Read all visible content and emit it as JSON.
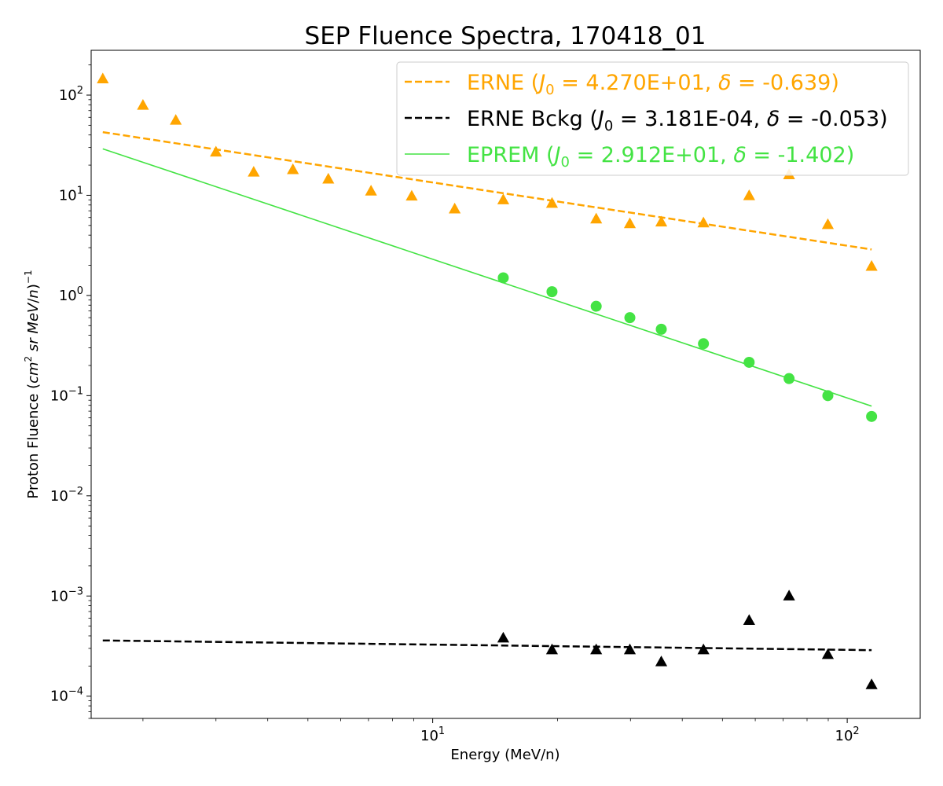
{
  "chart_data": {
    "type": "scatter",
    "title": "SEP Fluence Spectra, 170418_01",
    "xlabel": "Energy (MeV/n)",
    "ylabel": "Proton Fluence (cm² sr MeV/n)⁻¹",
    "xscale": "log",
    "yscale": "log",
    "xlim": [
      1.5,
      150
    ],
    "ylim": [
      6e-05,
      280
    ],
    "x_ticks": [
      {
        "value": 10,
        "mantissa": "10",
        "exp": "1"
      },
      {
        "value": 100,
        "mantissa": "10",
        "exp": "2"
      }
    ],
    "y_ticks": [
      {
        "value": 0.0001,
        "mantissa": "10",
        "exp": "−4"
      },
      {
        "value": 0.001,
        "mantissa": "10",
        "exp": "−3"
      },
      {
        "value": 0.01,
        "mantissa": "10",
        "exp": "−2"
      },
      {
        "value": 0.1,
        "mantissa": "10",
        "exp": "−1"
      },
      {
        "value": 1,
        "mantissa": "10",
        "exp": "0"
      },
      {
        "value": 10,
        "mantissa": "10",
        "exp": "1"
      },
      {
        "value": 100,
        "mantissa": "10",
        "exp": "2"
      }
    ],
    "legend_position": "top-right",
    "grid": false,
    "series": [
      {
        "name": "ERNE (J₀ = 4.270E+01, δ = -0.639)",
        "kind": "points",
        "marker": "triangle",
        "color": "#FFA500",
        "x": [
          1.6,
          2.0,
          2.4,
          3.0,
          3.7,
          4.6,
          5.6,
          7.1,
          8.9,
          11.3,
          14.8,
          19.4,
          24.8,
          29.9,
          35.6,
          45.0,
          58.0,
          72.4,
          89.8,
          114.5
        ],
        "y": [
          145,
          79,
          56,
          27,
          17,
          18,
          14.5,
          11,
          9.8,
          7.3,
          9.0,
          8.3,
          5.8,
          5.2,
          5.4,
          5.3,
          9.9,
          16,
          5.1,
          1.95
        ]
      },
      {
        "name": "ERNE (J₀ = 4.270E+01, δ = -0.639)",
        "kind": "fit",
        "dash": "dashed",
        "color": "#FFA500",
        "x": [
          1.6,
          114.5
        ],
        "y": [
          42.7,
          2.88
        ]
      },
      {
        "name": "ERNE Bckg (J₀ = 3.181E-04, δ = -0.053)",
        "kind": "points",
        "marker": "triangle",
        "color": "#000000",
        "x": [
          14.8,
          19.4,
          24.8,
          29.9,
          35.6,
          45.0,
          58.0,
          72.4,
          89.8,
          114.5
        ],
        "y": [
          0.00038,
          0.00029,
          0.00029,
          0.00029,
          0.00022,
          0.00029,
          0.00057,
          0.001,
          0.00026,
          0.00013
        ]
      },
      {
        "name": "ERNE Bckg (J₀ = 3.181E-04, δ = -0.053)",
        "kind": "fit",
        "dash": "dashed",
        "color": "#000000",
        "x": [
          1.6,
          114.5
        ],
        "y": [
          0.00036,
          0.000288
        ]
      },
      {
        "name": "EPREM (J₀ = 2.912E+01, δ = -1.402)",
        "kind": "points",
        "marker": "circle",
        "color": "#44E344",
        "x": [
          14.8,
          19.4,
          24.8,
          29.9,
          35.6,
          45.0,
          58.0,
          72.4,
          89.8,
          114.5
        ],
        "y": [
          1.5,
          1.09,
          0.78,
          0.6,
          0.46,
          0.33,
          0.215,
          0.148,
          0.1,
          0.062
        ]
      },
      {
        "name": "EPREM (J₀ = 2.912E+01, δ = -1.402)",
        "kind": "fit",
        "dash": "solid",
        "color": "#44E344",
        "x": [
          1.6,
          114.5
        ],
        "y": [
          29.1,
          0.0786
        ]
      }
    ],
    "legend": [
      {
        "prefix": "ERNE (",
        "j0": "4.270E+01",
        "delta": "-0.639",
        "color": "#FFA500",
        "dash": "dashed"
      },
      {
        "prefix": "ERNE Bckg (",
        "j0": "3.181E-04",
        "delta": "-0.053",
        "color": "#000000",
        "dash": "dashed"
      },
      {
        "prefix": "EPREM (",
        "j0": "2.912E+01",
        "delta": "-1.402",
        "color": "#44E344",
        "dash": "solid"
      }
    ]
  }
}
